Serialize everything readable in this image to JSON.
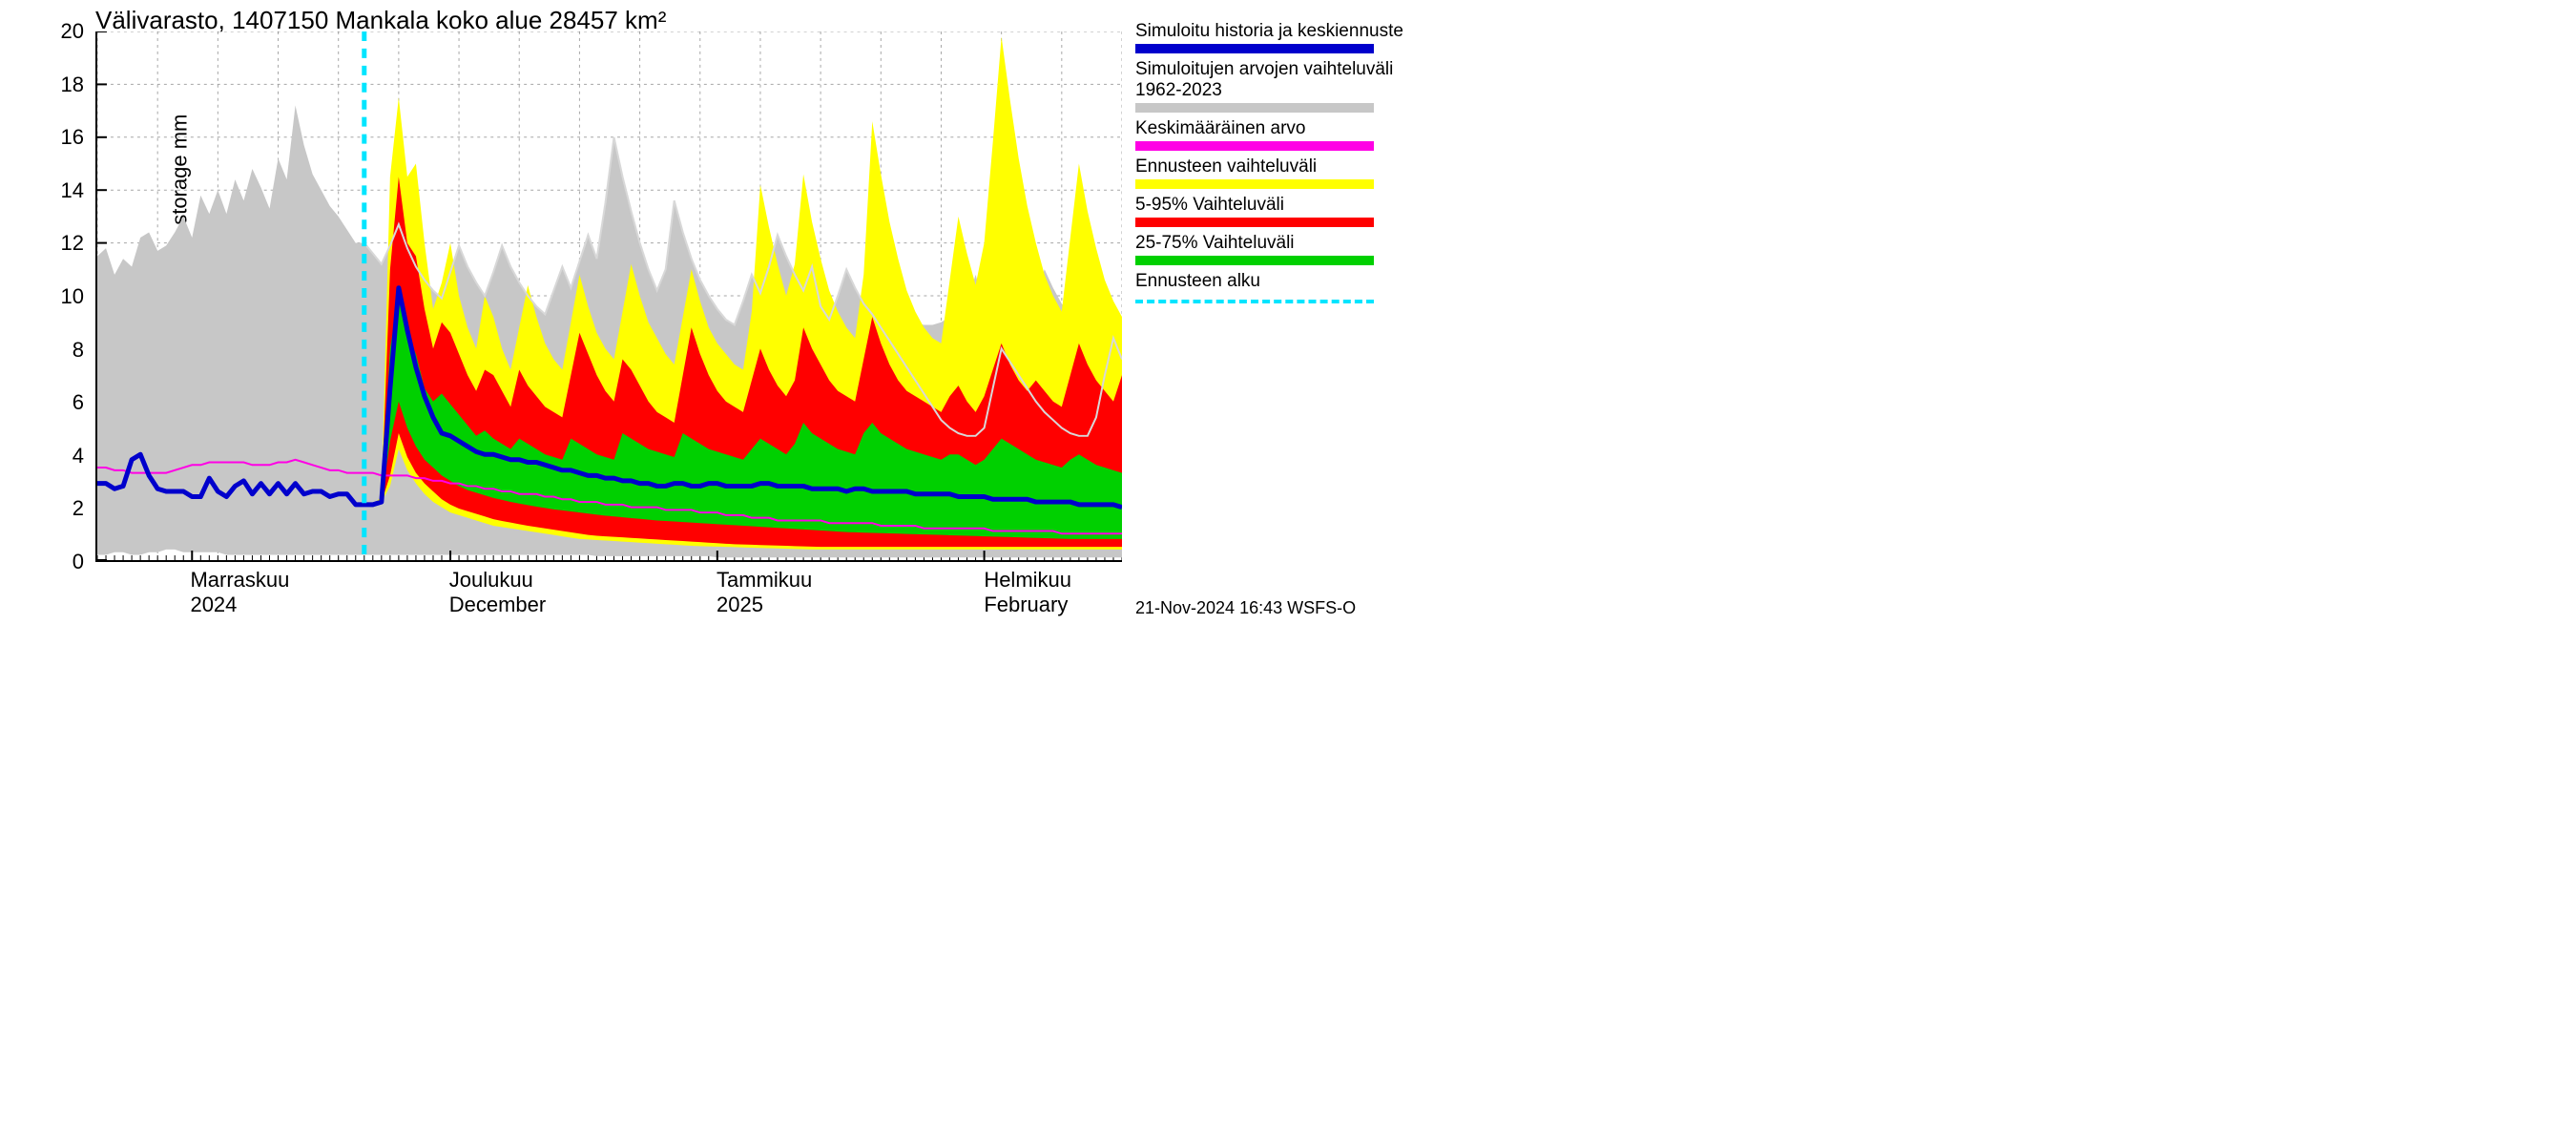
{
  "chart": {
    "type": "area-line-forecast",
    "title": "Välivarasto, 1407150 Mankala koko alue 28457 km²",
    "yaxis_label": "Välivarasto / Subsurface storage  mm",
    "ylim": [
      0,
      20
    ],
    "yticks": [
      0,
      2,
      4,
      6,
      8,
      10,
      12,
      14,
      16,
      18,
      20
    ],
    "x_days_total": 120,
    "xticks": [
      {
        "day": 11,
        "line1": "Marraskuu",
        "line2": "2024"
      },
      {
        "day": 41,
        "line1": "Joulukuu",
        "line2": "December"
      },
      {
        "day": 72,
        "line1": "Tammikuu",
        "line2": "2025"
      },
      {
        "day": 103,
        "line1": "Helmikuu",
        "line2": "February"
      }
    ],
    "minor_tick_every_days": 1,
    "forecast_start_day": 31,
    "colors": {
      "background": "#ffffff",
      "axis": "#000000",
      "grid": "#000000",
      "grid_opacity": 0.35,
      "history_range": "#c7c7c7",
      "history_range_edge": "#d8d8d8",
      "yellow_band": "#ffff00",
      "red_band": "#ff0000",
      "green_band": "#00d000",
      "main_line": "#0000cc",
      "mean_line": "#ff00e5",
      "forecast_marker": "#00e5ff"
    },
    "line_widths": {
      "main_line": 5,
      "mean_line": 2,
      "history_edge": 2,
      "forecast_marker": 5,
      "grid": 1
    },
    "font_sizes": {
      "title": 26,
      "axis_label": 22,
      "tick_label": 22,
      "legend": 19,
      "footer": 18
    },
    "history_range": {
      "upper": [
        11.5,
        11.8,
        10.8,
        11.4,
        11.1,
        12.2,
        12.4,
        11.7,
        11.9,
        12.4,
        13.0,
        12.2,
        13.8,
        13.1,
        14.0,
        13.1,
        14.4,
        13.6,
        14.8,
        14.1,
        13.3,
        15.2,
        14.4,
        17.2,
        15.7,
        14.6,
        14.0,
        13.4,
        13.0,
        12.5,
        12.0,
        12.0,
        11.6,
        11.2,
        11.9,
        12.7,
        11.8,
        11.1,
        10.6,
        10.2,
        9.9,
        10.9,
        11.9,
        11.1,
        10.5,
        10.0,
        10.9,
        11.9,
        11.1,
        10.5,
        10.0,
        9.6,
        9.3,
        10.2,
        11.1,
        10.3,
        11.3,
        12.3,
        11.4,
        13.5,
        16.0,
        14.5,
        13.2,
        12.0,
        11.0,
        10.2,
        11.0,
        13.6,
        12.4,
        11.4,
        10.6,
        10.0,
        9.5,
        9.1,
        8.9,
        9.8,
        10.8,
        10.1,
        11.1,
        12.3,
        11.5,
        10.8,
        10.2,
        11.1,
        9.6,
        9.1,
        10.0,
        11.0,
        10.3,
        9.7,
        9.3,
        10.5,
        9.9,
        9.5,
        9.2,
        9.0,
        8.9,
        8.9,
        9.0,
        9.2,
        10.4,
        9.7,
        10.8,
        9.6,
        10.7,
        10.1,
        9.6,
        9.3,
        9.1,
        10.0,
        11.0,
        10.3,
        9.7,
        9.3,
        10.2,
        11.2,
        10.5,
        9.9,
        9.5,
        9.2
      ],
      "lower": [
        0.2,
        0.2,
        0.3,
        0.3,
        0.2,
        0.2,
        0.3,
        0.3,
        0.4,
        0.4,
        0.3,
        0.3,
        0.3,
        0.3,
        0.3,
        0.2,
        0.2,
        0.2,
        0.2,
        0.2,
        0.2,
        0.2,
        0.2,
        0.2,
        0.2,
        0.2,
        0.2,
        0.2,
        0.2,
        0.2,
        0.2,
        0.2,
        0.2,
        0.2,
        0.2,
        0.2,
        0.2,
        0.2,
        0.2,
        0.2,
        0.2,
        0.2,
        0.2,
        0.2,
        0.2,
        0.2,
        0.2,
        0.2,
        0.2,
        0.2,
        0.2,
        0.2,
        0.2,
        0.2,
        0.2,
        0.2,
        0.2,
        0.2,
        0.15,
        0.15,
        0.15,
        0.15,
        0.15,
        0.15,
        0.15,
        0.15,
        0.15,
        0.15,
        0.15,
        0.15,
        0.15,
        0.15,
        0.1,
        0.1,
        0.1,
        0.1,
        0.1,
        0.1,
        0.1,
        0.1,
        0.1,
        0.1,
        0.1,
        0.1,
        0.1,
        0.1,
        0.1,
        0.1,
        0.1,
        0.1,
        0.1,
        0.1,
        0.1,
        0.1,
        0.1,
        0.1,
        0.1,
        0.1,
        0.1,
        0.1,
        0.1,
        0.1,
        0.1,
        0.1,
        0.1,
        0.1,
        0.1,
        0.1,
        0.1,
        0.1,
        0.1,
        0.1,
        0.1,
        0.1,
        0.1,
        0.1,
        0.1,
        0.1,
        0.1,
        0.1
      ]
    },
    "yellow": {
      "upper": [
        2.1,
        2.1,
        2.1,
        2.4,
        14.5,
        17.5,
        14.5,
        15.0,
        12.0,
        9.5,
        10.5,
        12.0,
        10.0,
        8.8,
        8.0,
        10.0,
        9.2,
        8.0,
        7.2,
        8.8,
        10.4,
        9.2,
        8.2,
        7.6,
        7.2,
        9.0,
        10.8,
        9.6,
        8.6,
        8.0,
        7.6,
        9.4,
        11.2,
        10.0,
        9.0,
        8.4,
        7.8,
        7.4,
        9.2,
        11.0,
        9.8,
        8.8,
        8.2,
        7.8,
        7.4,
        7.2,
        9.4,
        14.2,
        12.6,
        11.2,
        10.0,
        11.2,
        14.6,
        12.8,
        11.4,
        10.2,
        9.4,
        8.8,
        8.4,
        10.8,
        16.6,
        14.6,
        12.8,
        11.4,
        10.2,
        9.4,
        8.8,
        8.4,
        8.2,
        10.6,
        13.0,
        11.6,
        10.4,
        12.0,
        15.8,
        19.8,
        17.4,
        15.2,
        13.4,
        12.0,
        10.8,
        10.0,
        9.4,
        12.2,
        15.0,
        13.2,
        11.8,
        10.6,
        9.8,
        9.2
      ],
      "lower": [
        2.1,
        2.1,
        2.1,
        2.2,
        2.8,
        4.2,
        3.4,
        2.9,
        2.5,
        2.2,
        2.0,
        1.8,
        1.7,
        1.6,
        1.5,
        1.4,
        1.3,
        1.25,
        1.2,
        1.15,
        1.1,
        1.05,
        1.0,
        0.95,
        0.9,
        0.85,
        0.8,
        0.78,
        0.76,
        0.74,
        0.72,
        0.7,
        0.68,
        0.66,
        0.64,
        0.62,
        0.6,
        0.58,
        0.56,
        0.54,
        0.53,
        0.52,
        0.51,
        0.5,
        0.49,
        0.48,
        0.47,
        0.46,
        0.45,
        0.44,
        0.43,
        0.42,
        0.41,
        0.4,
        0.4,
        0.4,
        0.4,
        0.4,
        0.4,
        0.4,
        0.4,
        0.4,
        0.4,
        0.4,
        0.4,
        0.4,
        0.4,
        0.4,
        0.4,
        0.4,
        0.4,
        0.4,
        0.4,
        0.4,
        0.4,
        0.4,
        0.4,
        0.4,
        0.4,
        0.4,
        0.4,
        0.4,
        0.4,
        0.4,
        0.4,
        0.4,
        0.4,
        0.4,
        0.4,
        0.4
      ]
    },
    "red": {
      "upper": [
        2.1,
        2.1,
        2.1,
        2.3,
        11.0,
        14.5,
        12.0,
        11.5,
        9.5,
        8.0,
        9.0,
        8.6,
        7.8,
        7.0,
        6.4,
        7.2,
        7.0,
        6.4,
        5.8,
        7.2,
        6.6,
        6.2,
        5.8,
        5.6,
        5.4,
        7.0,
        8.6,
        7.8,
        7.0,
        6.4,
        6.0,
        7.6,
        7.2,
        6.6,
        6.0,
        5.6,
        5.4,
        5.2,
        7.0,
        8.8,
        7.8,
        7.0,
        6.4,
        6.0,
        5.8,
        5.6,
        6.8,
        8.0,
        7.2,
        6.6,
        6.2,
        6.8,
        8.8,
        8.0,
        7.4,
        6.8,
        6.4,
        6.2,
        6.0,
        7.6,
        9.2,
        8.2,
        7.4,
        6.8,
        6.4,
        6.2,
        6.0,
        5.8,
        5.6,
        6.2,
        6.6,
        6.0,
        5.6,
        6.2,
        7.2,
        8.2,
        7.4,
        6.8,
        6.4,
        6.8,
        6.4,
        6.0,
        5.8,
        7.0,
        8.2,
        7.4,
        6.8,
        6.4,
        6.0,
        7.0
      ],
      "lower": [
        2.1,
        2.1,
        2.1,
        2.2,
        3.2,
        4.8,
        3.9,
        3.3,
        2.9,
        2.6,
        2.3,
        2.1,
        1.95,
        1.85,
        1.75,
        1.65,
        1.55,
        1.48,
        1.42,
        1.36,
        1.3,
        1.25,
        1.2,
        1.15,
        1.1,
        1.05,
        1.0,
        0.95,
        0.92,
        0.9,
        0.88,
        0.86,
        0.84,
        0.82,
        0.8,
        0.78,
        0.76,
        0.74,
        0.72,
        0.7,
        0.68,
        0.66,
        0.64,
        0.62,
        0.6,
        0.59,
        0.58,
        0.57,
        0.56,
        0.55,
        0.54,
        0.53,
        0.52,
        0.51,
        0.5,
        0.5,
        0.5,
        0.5,
        0.5,
        0.5,
        0.5,
        0.5,
        0.5,
        0.5,
        0.5,
        0.5,
        0.5,
        0.5,
        0.5,
        0.5,
        0.5,
        0.5,
        0.5,
        0.5,
        0.5,
        0.5,
        0.5,
        0.5,
        0.5,
        0.5,
        0.5,
        0.5,
        0.5,
        0.5,
        0.5,
        0.5,
        0.5,
        0.5,
        0.5,
        0.5
      ]
    },
    "green": {
      "upper": [
        2.1,
        2.1,
        2.1,
        2.2,
        8.0,
        10.0,
        8.5,
        7.8,
        6.5,
        6.0,
        6.3,
        5.9,
        5.5,
        5.1,
        4.7,
        4.9,
        4.6,
        4.4,
        4.2,
        4.6,
        4.4,
        4.2,
        4.0,
        3.9,
        3.8,
        4.6,
        4.4,
        4.2,
        4.0,
        3.9,
        3.8,
        4.8,
        4.6,
        4.4,
        4.2,
        4.1,
        4.0,
        3.9,
        4.8,
        4.6,
        4.4,
        4.2,
        4.1,
        4.0,
        3.9,
        3.8,
        4.2,
        4.6,
        4.4,
        4.2,
        4.0,
        4.4,
        5.2,
        4.8,
        4.6,
        4.4,
        4.2,
        4.1,
        4.0,
        4.8,
        5.2,
        4.8,
        4.6,
        4.4,
        4.2,
        4.1,
        4.0,
        3.9,
        3.8,
        4.0,
        4.0,
        3.8,
        3.6,
        3.8,
        4.2,
        4.6,
        4.4,
        4.2,
        4.0,
        3.8,
        3.7,
        3.6,
        3.5,
        3.8,
        4.0,
        3.8,
        3.6,
        3.5,
        3.4,
        3.3
      ],
      "lower": [
        2.1,
        2.1,
        2.1,
        2.2,
        4.5,
        6.0,
        5.0,
        4.3,
        3.8,
        3.5,
        3.2,
        3.0,
        2.8,
        2.65,
        2.55,
        2.45,
        2.35,
        2.28,
        2.2,
        2.14,
        2.08,
        2.02,
        1.97,
        1.92,
        1.88,
        1.84,
        1.8,
        1.76,
        1.72,
        1.68,
        1.65,
        1.62,
        1.59,
        1.56,
        1.53,
        1.5,
        1.48,
        1.46,
        1.44,
        1.42,
        1.4,
        1.38,
        1.36,
        1.34,
        1.32,
        1.3,
        1.28,
        1.26,
        1.24,
        1.22,
        1.2,
        1.18,
        1.16,
        1.14,
        1.12,
        1.1,
        1.08,
        1.06,
        1.05,
        1.04,
        1.03,
        1.02,
        1.01,
        1.0,
        0.99,
        0.98,
        0.97,
        0.96,
        0.95,
        0.94,
        0.93,
        0.92,
        0.91,
        0.9,
        0.89,
        0.88,
        0.87,
        0.86,
        0.85,
        0.84,
        0.83,
        0.82,
        0.81,
        0.8,
        0.8,
        0.8,
        0.8,
        0.8,
        0.8,
        0.8
      ]
    },
    "main_line_values": [
      2.9,
      2.9,
      2.7,
      2.8,
      3.8,
      4.0,
      3.2,
      2.7,
      2.6,
      2.6,
      2.6,
      2.4,
      2.4,
      3.1,
      2.6,
      2.4,
      2.8,
      3.0,
      2.5,
      2.9,
      2.5,
      2.9,
      2.5,
      2.9,
      2.5,
      2.6,
      2.6,
      2.4,
      2.5,
      2.5,
      2.1,
      2.1,
      2.1,
      2.2,
      6.5,
      10.3,
      8.7,
      7.3,
      6.2,
      5.4,
      4.8,
      4.7,
      4.5,
      4.3,
      4.1,
      4.0,
      4.0,
      3.9,
      3.8,
      3.8,
      3.7,
      3.7,
      3.6,
      3.5,
      3.4,
      3.4,
      3.3,
      3.2,
      3.2,
      3.1,
      3.1,
      3.0,
      3.0,
      2.9,
      2.9,
      2.8,
      2.8,
      2.9,
      2.9,
      2.8,
      2.8,
      2.9,
      2.9,
      2.8,
      2.8,
      2.8,
      2.8,
      2.9,
      2.9,
      2.8,
      2.8,
      2.8,
      2.8,
      2.7,
      2.7,
      2.7,
      2.7,
      2.6,
      2.7,
      2.7,
      2.6,
      2.6,
      2.6,
      2.6,
      2.6,
      2.5,
      2.5,
      2.5,
      2.5,
      2.5,
      2.4,
      2.4,
      2.4,
      2.4,
      2.3,
      2.3,
      2.3,
      2.3,
      2.3,
      2.2,
      2.2,
      2.2,
      2.2,
      2.2,
      2.1,
      2.1,
      2.1,
      2.1,
      2.1,
      2.0
    ],
    "mean_line_values": [
      3.5,
      3.5,
      3.4,
      3.4,
      3.3,
      3.3,
      3.3,
      3.3,
      3.3,
      3.4,
      3.5,
      3.6,
      3.6,
      3.7,
      3.7,
      3.7,
      3.7,
      3.7,
      3.6,
      3.6,
      3.6,
      3.7,
      3.7,
      3.8,
      3.7,
      3.6,
      3.5,
      3.4,
      3.4,
      3.3,
      3.3,
      3.3,
      3.3,
      3.2,
      3.2,
      3.2,
      3.2,
      3.1,
      3.1,
      3.0,
      3.0,
      2.9,
      2.9,
      2.8,
      2.8,
      2.7,
      2.7,
      2.6,
      2.6,
      2.5,
      2.5,
      2.5,
      2.4,
      2.4,
      2.3,
      2.3,
      2.2,
      2.2,
      2.2,
      2.1,
      2.1,
      2.1,
      2.0,
      2.0,
      2.0,
      2.0,
      1.9,
      1.9,
      1.9,
      1.9,
      1.8,
      1.8,
      1.8,
      1.7,
      1.7,
      1.7,
      1.6,
      1.6,
      1.6,
      1.5,
      1.5,
      1.5,
      1.5,
      1.5,
      1.5,
      1.4,
      1.4,
      1.4,
      1.4,
      1.4,
      1.4,
      1.3,
      1.3,
      1.3,
      1.3,
      1.3,
      1.2,
      1.2,
      1.2,
      1.2,
      1.2,
      1.2,
      1.2,
      1.2,
      1.1,
      1.1,
      1.1,
      1.1,
      1.1,
      1.1,
      1.1,
      1.1,
      1.0,
      1.0,
      1.0,
      1.0,
      1.0,
      1.0,
      1.0,
      1.0
    ],
    "history_upper_edge_after_forecast": [
      12.0,
      11.6,
      11.2,
      11.9,
      12.7,
      11.8,
      11.1,
      10.6,
      10.2,
      9.9,
      10.9,
      11.9,
      11.1,
      10.5,
      10.0,
      10.9,
      11.9,
      11.1,
      10.5,
      10.0,
      9.6,
      9.3,
      10.2,
      11.1,
      10.3,
      11.3,
      12.3,
      11.4,
      13.5,
      16.0,
      14.5,
      13.2,
      12.0,
      11.0,
      10.2,
      11.0,
      13.6,
      12.4,
      11.4,
      10.6,
      10.0,
      9.5,
      9.1,
      8.9,
      9.8,
      10.8,
      10.1,
      11.1,
      12.3,
      11.5,
      10.8,
      10.2,
      11.1,
      9.6,
      9.1,
      10.0,
      11.0,
      10.3,
      9.7,
      9.3,
      8.8,
      8.3,
      7.8,
      7.3,
      6.8,
      6.3,
      5.8,
      5.3,
      5.0,
      4.8,
      4.7,
      4.7,
      5.0,
      6.5,
      8.0,
      7.5,
      7.0,
      6.5,
      6.0,
      5.6,
      5.3,
      5.0,
      4.8,
      4.7,
      4.7,
      5.4,
      7.0,
      8.4,
      7.6
    ],
    "forecast_start_from_day": 31
  },
  "legend": {
    "entries": [
      {
        "label": "Simuloitu historia ja keskiennuste",
        "color": "#0000cc",
        "type": "solid"
      },
      {
        "label": "Simuloitujen arvojen vaihteluväli 1962-2023",
        "color": "#c7c7c7",
        "type": "solid"
      },
      {
        "label": "Keskimääräinen arvo",
        "color": "#ff00e5",
        "type": "solid"
      },
      {
        "label": "Ennusteen vaihteluväli",
        "color": "#ffff00",
        "type": "solid"
      },
      {
        "label": "5-95% Vaihteluväli",
        "color": "#ff0000",
        "type": "solid"
      },
      {
        "label": "25-75% Vaihteluväli",
        "color": "#00d000",
        "type": "solid"
      },
      {
        "label": "Ennusteen alku",
        "color": "#00e5ff",
        "type": "dashed"
      }
    ]
  },
  "footer": "21-Nov-2024 16:43 WSFS-O"
}
